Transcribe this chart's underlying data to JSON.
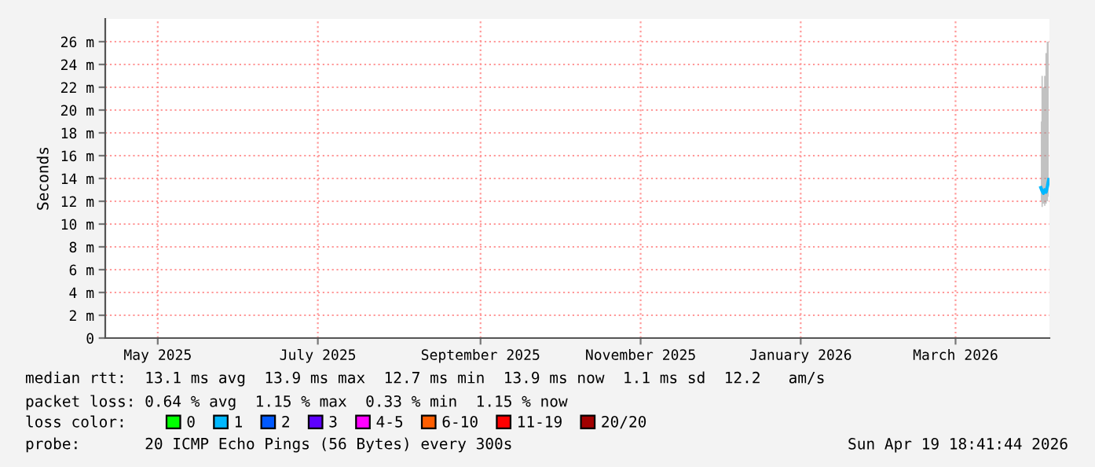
{
  "chart_data": {
    "type": "line",
    "ylabel": "Seconds",
    "x": [
      "2026-04-16T12:00",
      "2026-04-17T00:00",
      "2026-04-17T12:00",
      "2026-04-18T00:00",
      "2026-04-18T12:00",
      "2026-04-19T00:00",
      "2026-04-19T12:00"
    ],
    "series": [
      {
        "name": "0",
        "color": "#00ff00",
        "values": [
          null,
          null,
          null,
          null,
          null,
          null,
          null
        ]
      },
      {
        "name": "1",
        "color": "#00b8ff",
        "values": [
          13.2,
          12.9,
          12.7,
          13.0,
          12.8,
          13.3,
          13.9
        ],
        "lower": [
          12.0,
          11.5,
          11.8,
          11.6,
          11.8,
          12.0,
          12.4
        ],
        "upper": [
          19,
          23,
          22,
          23,
          25,
          26,
          26
        ]
      },
      {
        "name": "2",
        "color": "#0059ff",
        "values": [
          null,
          null,
          null,
          null,
          null,
          null,
          null
        ]
      },
      {
        "name": "3",
        "color": "#5e00ff",
        "values": [
          null,
          null,
          null,
          null,
          null,
          null,
          null
        ]
      },
      {
        "name": "4-5",
        "color": "#ff00ff",
        "values": [
          null,
          null,
          null,
          null,
          null,
          null,
          null
        ]
      },
      {
        "name": "6-10",
        "color": "#ff5e00",
        "values": [
          null,
          null,
          null,
          null,
          null,
          null,
          null
        ]
      },
      {
        "name": "11-19",
        "color": "#ff0000",
        "values": [
          null,
          null,
          null,
          null,
          null,
          null,
          null
        ]
      },
      {
        "name": "20/20",
        "color": "#a10000",
        "values": [
          null,
          null,
          null,
          null,
          null,
          null,
          null
        ]
      }
    ],
    "xlim": [
      "2025-04-25T00:00",
      "2026-04-19T18:41"
    ],
    "xticks": [
      {
        "value": "2025-05-15",
        "label": "May 2025"
      },
      {
        "value": "2025-07-15",
        "label": "July 2025"
      },
      {
        "value": "2025-09-15",
        "label": "September 2025"
      },
      {
        "value": "2025-11-15",
        "label": "November 2025"
      },
      {
        "value": "2026-01-15",
        "label": "January 2026"
      },
      {
        "value": "2026-03-15",
        "label": "March 2026"
      }
    ],
    "ylim": [
      0,
      28
    ],
    "yticks": [
      0,
      {
        "value": 2,
        "label": "2 m"
      },
      {
        "value": 4,
        "label": "4 m"
      },
      {
        "value": 6,
        "label": "6 m"
      },
      {
        "value": 8,
        "label": "8 m"
      },
      {
        "value": 10,
        "label": "10 m"
      },
      {
        "value": 12,
        "label": "12 m"
      },
      {
        "value": 14,
        "label": "14 m"
      },
      {
        "value": 16,
        "label": "16 m"
      },
      {
        "value": 18,
        "label": "18 m"
      },
      {
        "value": 20,
        "label": "20 m"
      },
      {
        "value": 22,
        "label": "22 m"
      },
      {
        "value": 24,
        "label": "24 m"
      },
      {
        "value": 26,
        "label": "26 m"
      }
    ],
    "grid": true,
    "legend": "bottom",
    "legend_title": "loss color:",
    "marker": "none",
    "line_style": "solid",
    "annotations": [
      "median rtt:  13.1 ms avg  13.9 ms max  12.7 ms min  13.9 ms now  1.1 ms sd  12.2   am/s",
      "packet loss: 0.64 % avg  1.15 % max  0.33 % min  1.15 % now",
      "probe:       20 ICMP Echo Pings (56 Bytes) every 300s",
      "Sun Apr 19 18:41:44 2026"
    ]
  }
}
